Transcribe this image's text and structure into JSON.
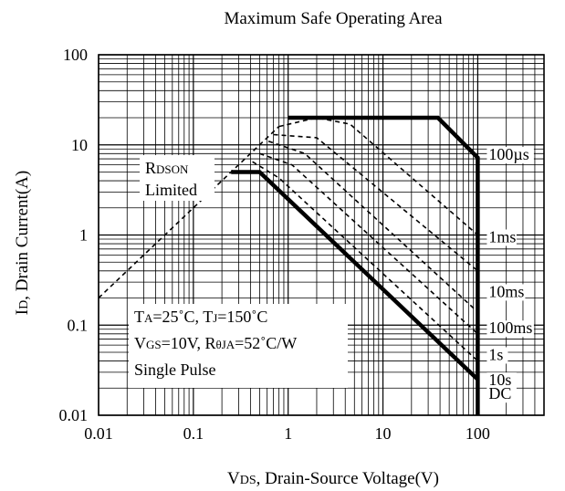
{
  "chart_data": {
    "type": "line",
    "title": "Maximum Safe Operating Area",
    "xlabel": {
      "main": "V",
      "sub": "DS",
      "rest": ", Drain-Source Voltage(V)"
    },
    "ylabel": {
      "main": "I",
      "sub": "D",
      "rest": ", Drain Current(A)"
    },
    "x_scale": "log",
    "y_scale": "log",
    "xlim": [
      0.01,
      500
    ],
    "ylim": [
      0.01,
      100
    ],
    "grid": true,
    "x_ticks": [
      {
        "value": 0.01,
        "label": "0.01"
      },
      {
        "value": 0.1,
        "label": "0.1"
      },
      {
        "value": 1,
        "label": "1"
      },
      {
        "value": 10,
        "label": "10"
      },
      {
        "value": 100,
        "label": "100"
      }
    ],
    "y_ticks": [
      {
        "value": 0.01,
        "label": "0.01"
      },
      {
        "value": 0.1,
        "label": "0.1"
      },
      {
        "value": 1,
        "label": "1"
      },
      {
        "value": 10,
        "label": "10"
      },
      {
        "value": 100,
        "label": "100"
      }
    ],
    "series": [
      {
        "name": "RDSON Limited",
        "style": "dashed",
        "points": [
          [
            0.01,
            0.2
          ],
          [
            0.8,
            16
          ]
        ]
      },
      {
        "name": "100µs",
        "style": "bold",
        "points": [
          [
            1,
            20
          ],
          [
            38,
            20
          ],
          [
            100,
            7.2
          ],
          [
            100,
            0.01
          ]
        ]
      },
      {
        "name": "1ms",
        "style": "dashed",
        "points": [
          [
            0.8,
            16
          ],
          [
            2,
            20
          ],
          [
            4.5,
            17
          ],
          [
            100,
            1.0
          ]
        ]
      },
      {
        "name": "10ms",
        "style": "dashed",
        "points": [
          [
            0.7,
            13
          ],
          [
            2,
            12
          ],
          [
            100,
            0.4
          ]
        ]
      },
      {
        "name": "100ms",
        "style": "dashed",
        "points": [
          [
            0.62,
            11
          ],
          [
            1.5,
            8
          ],
          [
            100,
            0.14
          ]
        ]
      },
      {
        "name": "1s",
        "style": "dashed",
        "points": [
          [
            0.5,
            8
          ],
          [
            1.1,
            6
          ],
          [
            100,
            0.08
          ]
        ]
      },
      {
        "name": "10s",
        "style": "dashed",
        "points": [
          [
            0.42,
            6.5
          ],
          [
            0.8,
            4.3
          ],
          [
            100,
            0.04
          ]
        ]
      },
      {
        "name": "DC",
        "style": "bold",
        "points": [
          [
            0.25,
            5
          ],
          [
            0.5,
            5
          ],
          [
            100,
            0.025
          ]
        ]
      }
    ],
    "curve_labels": [
      {
        "text": "100µs",
        "x": 100,
        "y": 7
      },
      {
        "text": "1ms",
        "x": 100,
        "y": 0.85
      },
      {
        "text": "10ms",
        "x": 100,
        "y": 0.21
      },
      {
        "text": "100ms",
        "x": 100,
        "y": 0.083
      },
      {
        "text": "1s",
        "x": 100,
        "y": 0.042
      },
      {
        "text": "10s",
        "x": 100,
        "y": 0.022
      },
      {
        "text": "DC",
        "x": 100,
        "y": 0.0155
      }
    ],
    "annotations": [
      {
        "id": "rdson",
        "lines": [
          [
            {
              "t": "R",
              "sub": false
            },
            {
              "t": "DSON",
              "sub": true
            }
          ],
          [
            {
              "t": "Limited",
              "sub": false
            }
          ]
        ]
      },
      {
        "id": "conditions",
        "lines": [
          [
            {
              "t": "T",
              "sub": false
            },
            {
              "t": "A",
              "sub": true
            },
            {
              "t": "=25˚C, T",
              "sub": false
            },
            {
              "t": "J",
              "sub": true
            },
            {
              "t": "=150˚C",
              "sub": false
            }
          ],
          [
            {
              "t": "V",
              "sub": false
            },
            {
              "t": "GS",
              "sub": true
            },
            {
              "t": "=10V, R",
              "sub": false
            },
            {
              "t": "θJA",
              "sub": true
            },
            {
              "t": "=52˚C/W",
              "sub": false
            }
          ],
          [
            {
              "t": "Single Pulse",
              "sub": false
            }
          ]
        ]
      }
    ]
  }
}
